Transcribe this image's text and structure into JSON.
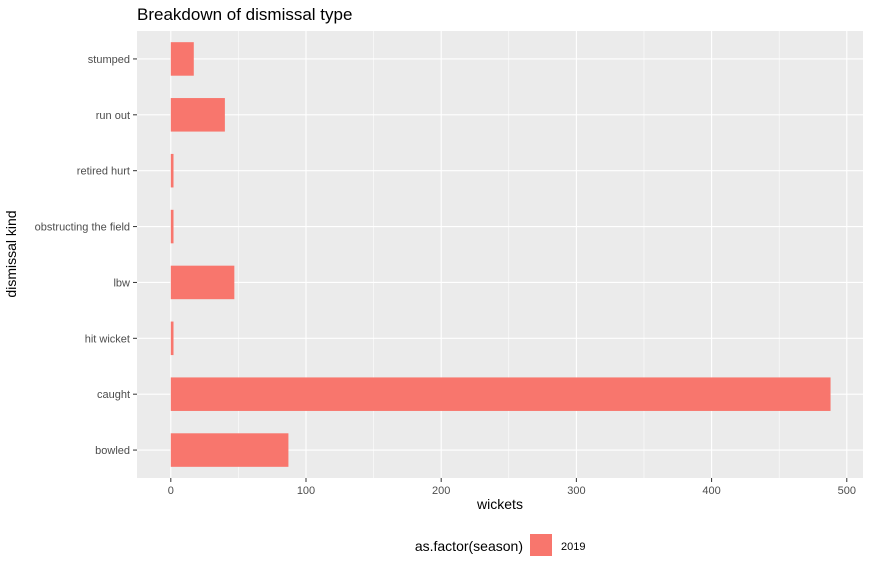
{
  "chart_data": {
    "type": "bar",
    "orientation": "horizontal",
    "title": "Breakdown of dismissal type",
    "xlabel": "wickets",
    "ylabel": "dismissal kind",
    "categories": [
      "bowled",
      "caught",
      "hit wicket",
      "lbw",
      "obstructing the field",
      "retired hurt",
      "run out",
      "stumped"
    ],
    "series": [
      {
        "name": "2019",
        "values": [
          87,
          488,
          2,
          47,
          2,
          2,
          40,
          17
        ]
      }
    ],
    "xlim": [
      -25,
      512
    ],
    "xticks": [
      0,
      100,
      200,
      300,
      400,
      500
    ],
    "xtick_labels": [
      "0",
      "100",
      "200",
      "300",
      "400",
      "500"
    ],
    "grid": true,
    "legend": {
      "title": "as.factor(season)",
      "position": "bottom"
    },
    "colors": {
      "bar": "#F8766D",
      "panel": "#EBEBEB",
      "grid_major": "#FFFFFF",
      "tick_text": "#4D4D4D"
    }
  }
}
